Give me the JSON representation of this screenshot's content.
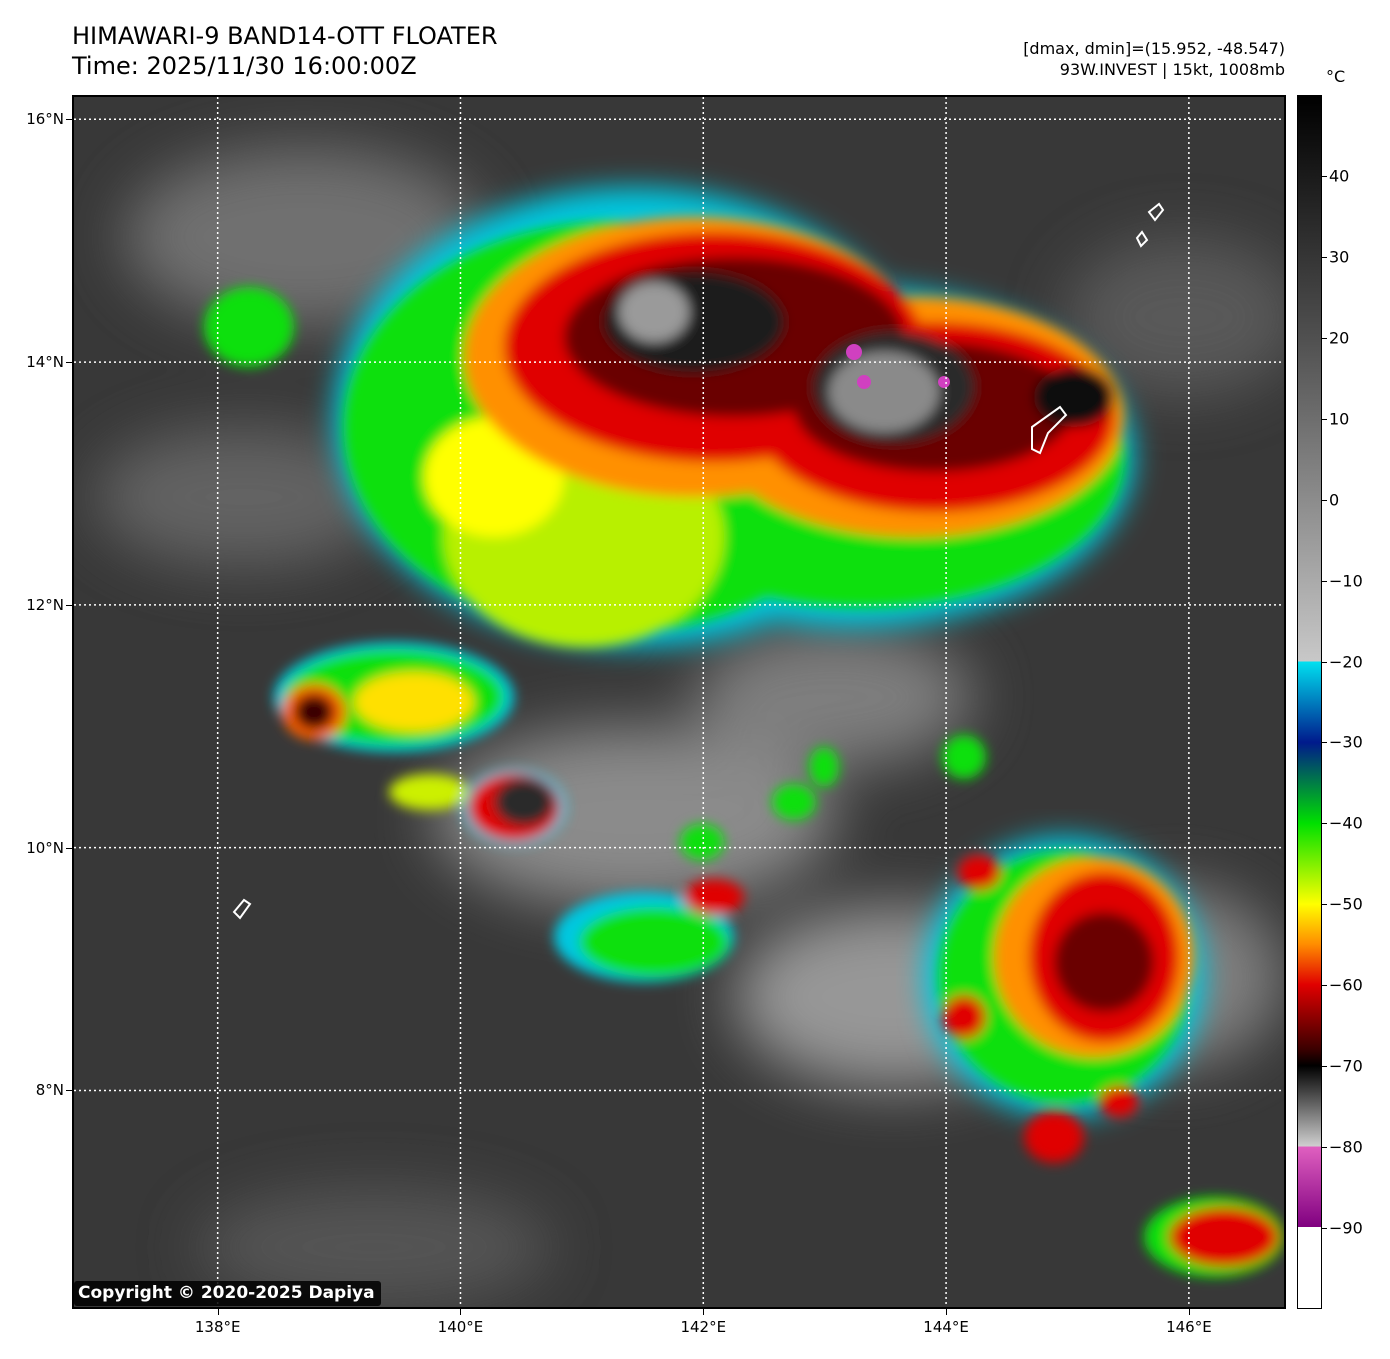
{
  "title": {
    "line1": "HIMAWARI-9 BAND14-OTT FLOATER",
    "line2": "Time: 2025/11/30 16:00:00Z"
  },
  "info": {
    "line1": "[dmax, dmin]=(15.952, -48.547)",
    "line2": "93W.INVEST | 15kt, 1008mb"
  },
  "map": {
    "lat_range": [
      6.2,
      16.2
    ],
    "lon_range": [
      136.8,
      146.8
    ],
    "lat_labels": [
      "16°N",
      "14°N",
      "12°N",
      "10°N",
      "8°N"
    ],
    "lat_values": [
      16,
      14,
      12,
      10,
      8
    ],
    "lon_labels": [
      "138°E",
      "140°E",
      "142°E",
      "144°E",
      "146°E"
    ],
    "lon_values": [
      138,
      140,
      142,
      144,
      146
    ],
    "gridlines": "dotted white"
  },
  "colorbar": {
    "unit": "°C",
    "labels": [
      "40",
      "30",
      "20",
      "10",
      "0",
      "−10",
      "−20",
      "−30",
      "−40",
      "−50",
      "−60",
      "−70",
      "−80",
      "−90"
    ],
    "values": [
      40,
      30,
      20,
      10,
      0,
      -10,
      -20,
      -30,
      -40,
      -50,
      -60,
      -70,
      -80,
      -90
    ],
    "range": [
      -100,
      50
    ],
    "colors": {
      "hot": "#000000",
      "warm": "#c8c8c8",
      "cyan": "#00e0f0",
      "blue": "#001a8c",
      "green": "#00e000",
      "yellow": "#ffff00",
      "orange": "#ff8c00",
      "red": "#e00000",
      "darkred": "#3a0000",
      "magenta": "#e060c0",
      "purple": "#800080",
      "white": "#ffffff"
    }
  },
  "copyright": "Copyright © 2020-2025 Dapiya"
}
